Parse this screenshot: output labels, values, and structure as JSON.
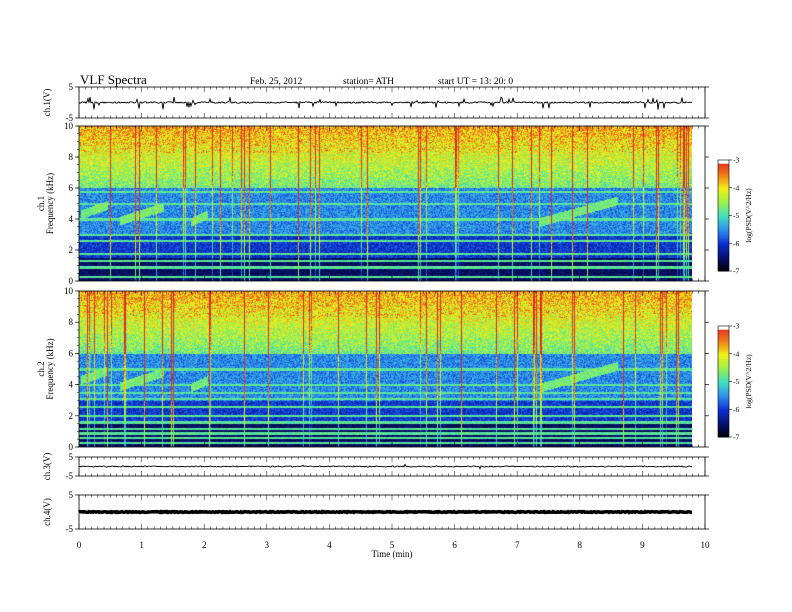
{
  "header": {
    "title": "VLF  Spectra",
    "date": "Feb. 25, 2012",
    "station": "station= ATH",
    "start": "start  UT  =    13: 20: 0"
  },
  "colors": {
    "colormap": [
      "#000000",
      "#06106e",
      "#0a2fd0",
      "#2f8ef0",
      "#3fe0c0",
      "#9af04a",
      "#f2f018",
      "#f07818",
      "#e02828",
      "#ffffff"
    ]
  },
  "chart_data": [
    {
      "type": "line",
      "name": "ch1-waveform",
      "ylabel": "ch.1(V)",
      "ylim": [
        -5,
        5
      ],
      "yticks": [
        5,
        -5
      ],
      "baseline": 0,
      "xlim": [
        0,
        10
      ]
    },
    {
      "type": "heatmap",
      "name": "ch1-spectrogram",
      "ylabel": "ch.1\nFrequency  (kHz)",
      "ylim": [
        0,
        10
      ],
      "yticks": [
        0,
        2,
        4,
        6,
        8,
        10
      ],
      "xlim": [
        0,
        10
      ],
      "data_end_min": 9.8,
      "colorbar": {
        "label": "log(PSD(V^2/Hz)",
        "ticks": [
          -3,
          -4,
          -5,
          -6,
          -7
        ],
        "range": [
          -7,
          -3
        ]
      },
      "features": {
        "tones_khz": [
          0.3,
          0.9,
          1.3,
          1.8,
          2.6,
          3.0,
          4.0,
          5.0,
          5.8
        ],
        "rising_tones": [
          {
            "t0": 0.02,
            "t1": 0.45,
            "f0": 4.3,
            "f1": 4.9
          },
          {
            "t0": 0.65,
            "t1": 1.35,
            "f0": 3.9,
            "f1": 4.8
          },
          {
            "t0": 1.78,
            "t1": 2.05,
            "f0": 3.8,
            "f1": 4.3
          },
          {
            "t0": 7.35,
            "t1": 8.6,
            "f0": 3.8,
            "f1": 5.2
          }
        ]
      }
    },
    {
      "type": "heatmap",
      "name": "ch2-spectrogram",
      "ylabel": "ch.2\nFrequency  (kHz)",
      "ylim": [
        0,
        10
      ],
      "yticks": [
        0,
        2,
        4,
        6,
        8,
        10
      ],
      "xlim": [
        0,
        10
      ],
      "data_end_min": 9.8,
      "colorbar": {
        "label": "log(PSD(V^2/Hz)",
        "ticks": [
          -3,
          -4,
          -5,
          -6,
          -7
        ],
        "range": [
          -7,
          -3
        ]
      },
      "features": {
        "tones_khz": [
          0.3,
          0.6,
          0.9,
          1.2,
          1.6,
          2.0,
          2.6,
          3.1,
          3.5,
          4.0,
          5.0
        ],
        "rising_tones": [
          {
            "t0": 0.02,
            "t1": 0.45,
            "f0": 4.3,
            "f1": 4.9
          },
          {
            "t0": 0.65,
            "t1": 1.35,
            "f0": 3.9,
            "f1": 4.8
          },
          {
            "t0": 1.78,
            "t1": 2.05,
            "f0": 3.8,
            "f1": 4.3
          },
          {
            "t0": 7.35,
            "t1": 8.6,
            "f0": 3.8,
            "f1": 5.2
          }
        ]
      }
    },
    {
      "type": "line",
      "name": "ch3-waveform",
      "ylabel": "ch.3(V)",
      "ylim": [
        -5,
        5
      ],
      "yticks": [
        5,
        -5
      ],
      "baseline": 0,
      "xlim": [
        0,
        10
      ]
    },
    {
      "type": "line",
      "name": "ch4-waveform",
      "ylabel": "ch.4(V)",
      "ylim": [
        -5,
        5
      ],
      "yticks": [
        5,
        -5
      ],
      "baseline": 0,
      "xlim": [
        0,
        10
      ],
      "xlabel": "Time  (min)",
      "xticks": [
        0,
        1,
        2,
        3,
        4,
        5,
        6,
        7,
        8,
        9,
        10
      ]
    }
  ]
}
